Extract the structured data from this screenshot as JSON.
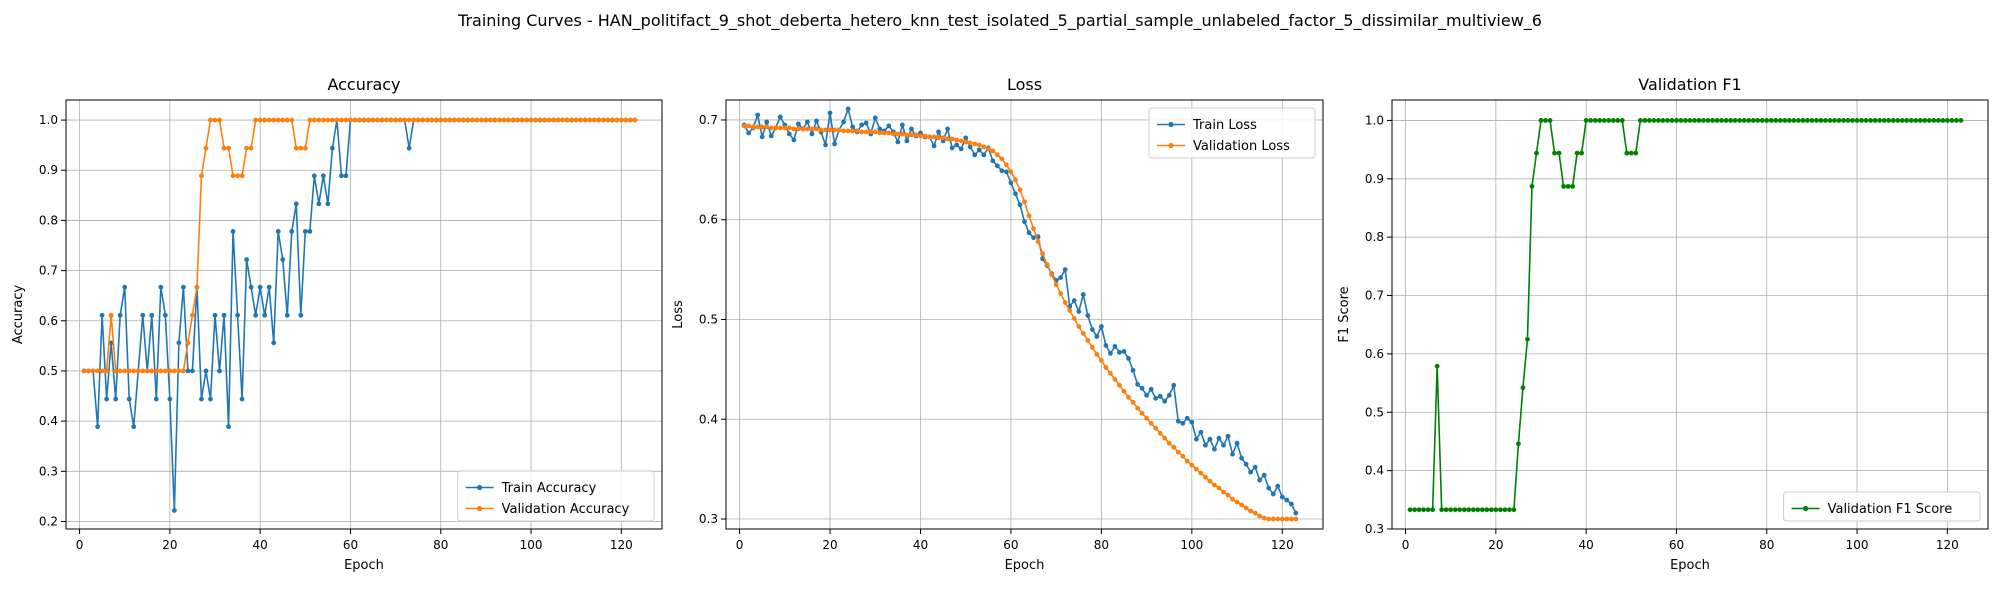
{
  "figure": {
    "suptitle": "Training Curves - HAN_politifact_9_shot_deberta_hetero_knn_test_isolated_5_partial_sample_unlabeled_factor_5_dissimilar_multiview_6"
  },
  "colors": {
    "blue": "#1f77b4",
    "orange": "#ff7f0e",
    "green": "#008000",
    "grid": "#b0b0b0"
  },
  "chart_data": [
    {
      "type": "line",
      "title": "Accuracy",
      "xlabel": "Epoch",
      "ylabel": "Accuracy",
      "xlim": [
        -3,
        129
      ],
      "ylim": [
        0.185,
        1.04
      ],
      "xticks": [
        0,
        20,
        40,
        60,
        80,
        100,
        120
      ],
      "yticks": [
        0.2,
        0.3,
        0.4,
        0.5,
        0.6,
        0.7,
        0.8,
        0.9,
        1.0
      ],
      "grid": true,
      "legend": "bottom-right",
      "series": [
        {
          "name": "Train Accuracy",
          "color": "#1f77b4",
          "x_start": 1,
          "values": [
            0.5,
            0.5,
            0.5,
            0.389,
            0.611,
            0.444,
            0.556,
            0.444,
            0.611,
            0.667,
            0.444,
            0.389,
            0.5,
            0.611,
            0.5,
            0.611,
            0.444,
            0.667,
            0.611,
            0.444,
            0.222,
            0.556,
            0.667,
            0.5,
            0.5,
            0.667,
            0.444,
            0.5,
            0.444,
            0.611,
            0.5,
            0.611,
            0.389,
            0.778,
            0.611,
            0.444,
            0.722,
            0.667,
            0.611,
            0.667,
            0.611,
            0.667,
            0.556,
            0.778,
            0.722,
            0.611,
            0.778,
            0.833,
            0.611,
            0.778,
            0.778,
            0.889,
            0.833,
            0.889,
            0.833,
            0.944,
            1.0,
            0.889,
            0.889,
            1.0,
            1.0,
            1.0,
            1.0,
            1.0,
            1.0,
            1.0,
            1.0,
            1.0,
            1.0,
            1.0,
            1.0,
            1.0,
            0.944,
            1.0,
            1.0,
            1.0,
            1.0,
            1.0,
            1.0,
            1.0,
            1.0,
            1.0,
            1.0,
            1.0,
            1.0,
            1.0,
            1.0,
            1.0,
            1.0,
            1.0,
            1.0,
            1.0,
            1.0,
            1.0,
            1.0,
            1.0,
            1.0,
            1.0,
            1.0,
            1.0,
            1.0,
            1.0,
            1.0,
            1.0,
            1.0,
            1.0,
            1.0,
            1.0,
            1.0,
            1.0,
            1.0,
            1.0,
            1.0,
            1.0,
            1.0,
            1.0,
            1.0,
            1.0,
            1.0,
            1.0,
            1.0,
            1.0,
            1.0
          ]
        },
        {
          "name": "Validation Accuracy",
          "color": "#ff7f0e",
          "x_start": 1,
          "values": [
            0.5,
            0.5,
            0.5,
            0.5,
            0.5,
            0.5,
            0.611,
            0.5,
            0.5,
            0.5,
            0.5,
            0.5,
            0.5,
            0.5,
            0.5,
            0.5,
            0.5,
            0.5,
            0.5,
            0.5,
            0.5,
            0.5,
            0.5,
            0.556,
            0.611,
            0.667,
            0.889,
            0.944,
            1.0,
            1.0,
            1.0,
            0.944,
            0.944,
            0.889,
            0.889,
            0.889,
            0.944,
            0.944,
            1.0,
            1.0,
            1.0,
            1.0,
            1.0,
            1.0,
            1.0,
            1.0,
            1.0,
            0.944,
            0.944,
            0.944,
            1.0,
            1.0,
            1.0,
            1.0,
            1.0,
            1.0,
            1.0,
            1.0,
            1.0,
            1.0,
            1.0,
            1.0,
            1.0,
            1.0,
            1.0,
            1.0,
            1.0,
            1.0,
            1.0,
            1.0,
            1.0,
            1.0,
            1.0,
            1.0,
            1.0,
            1.0,
            1.0,
            1.0,
            1.0,
            1.0,
            1.0,
            1.0,
            1.0,
            1.0,
            1.0,
            1.0,
            1.0,
            1.0,
            1.0,
            1.0,
            1.0,
            1.0,
            1.0,
            1.0,
            1.0,
            1.0,
            1.0,
            1.0,
            1.0,
            1.0,
            1.0,
            1.0,
            1.0,
            1.0,
            1.0,
            1.0,
            1.0,
            1.0,
            1.0,
            1.0,
            1.0,
            1.0,
            1.0,
            1.0,
            1.0,
            1.0,
            1.0,
            1.0,
            1.0,
            1.0,
            1.0,
            1.0,
            1.0
          ]
        }
      ]
    },
    {
      "type": "line",
      "title": "Loss",
      "xlabel": "Epoch",
      "ylabel": "Loss",
      "xlim": [
        -3,
        129
      ],
      "ylim": [
        0.29,
        0.72
      ],
      "xticks": [
        0,
        20,
        40,
        60,
        80,
        100,
        120
      ],
      "yticks": [
        0.3,
        0.4,
        0.5,
        0.6,
        0.7
      ],
      "grid": true,
      "legend": "top-right",
      "series": [
        {
          "name": "Train Loss",
          "color": "#1f77b4",
          "x_start": 1,
          "values": [
            0.695,
            0.687,
            0.692,
            0.705,
            0.683,
            0.698,
            0.684,
            0.692,
            0.703,
            0.695,
            0.686,
            0.68,
            0.696,
            0.691,
            0.698,
            0.686,
            0.699,
            0.688,
            0.675,
            0.707,
            0.676,
            0.69,
            0.698,
            0.711,
            0.693,
            0.688,
            0.695,
            0.697,
            0.686,
            0.702,
            0.691,
            0.689,
            0.694,
            0.688,
            0.678,
            0.695,
            0.679,
            0.691,
            0.684,
            0.687,
            0.683,
            0.683,
            0.674,
            0.688,
            0.679,
            0.691,
            0.672,
            0.675,
            0.671,
            0.682,
            0.673,
            0.665,
            0.67,
            0.665,
            0.672,
            0.659,
            0.654,
            0.649,
            0.648,
            0.637,
            0.626,
            0.615,
            0.598,
            0.587,
            0.582,
            0.583,
            0.561,
            0.554,
            0.546,
            0.539,
            0.542,
            0.55,
            0.513,
            0.519,
            0.508,
            0.525,
            0.504,
            0.49,
            0.483,
            0.493,
            0.474,
            0.466,
            0.473,
            0.467,
            0.468,
            0.461,
            0.449,
            0.435,
            0.431,
            0.424,
            0.43,
            0.421,
            0.423,
            0.418,
            0.424,
            0.434,
            0.398,
            0.396,
            0.401,
            0.397,
            0.38,
            0.387,
            0.374,
            0.38,
            0.37,
            0.381,
            0.374,
            0.383,
            0.365,
            0.376,
            0.361,
            0.355,
            0.347,
            0.352,
            0.339,
            0.344,
            0.331,
            0.325,
            0.333,
            0.322,
            0.319,
            0.315,
            0.306
          ]
        },
        {
          "name": "Validation Loss",
          "color": "#ff7f0e",
          "x_start": 1,
          "values": [
            0.694,
            0.694,
            0.693,
            0.693,
            0.693,
            0.693,
            0.692,
            0.692,
            0.692,
            0.692,
            0.692,
            0.691,
            0.691,
            0.691,
            0.691,
            0.691,
            0.691,
            0.69,
            0.69,
            0.69,
            0.69,
            0.69,
            0.689,
            0.689,
            0.689,
            0.689,
            0.688,
            0.688,
            0.688,
            0.688,
            0.687,
            0.687,
            0.687,
            0.686,
            0.686,
            0.686,
            0.685,
            0.685,
            0.685,
            0.684,
            0.684,
            0.683,
            0.683,
            0.682,
            0.682,
            0.681,
            0.681,
            0.68,
            0.679,
            0.678,
            0.677,
            0.676,
            0.675,
            0.673,
            0.671,
            0.669,
            0.665,
            0.661,
            0.655,
            0.648,
            0.64,
            0.63,
            0.618,
            0.604,
            0.591,
            0.578,
            0.566,
            0.555,
            0.545,
            0.535,
            0.526,
            0.517,
            0.509,
            0.501,
            0.493,
            0.486,
            0.479,
            0.472,
            0.465,
            0.459,
            0.452,
            0.446,
            0.44,
            0.434,
            0.428,
            0.422,
            0.417,
            0.411,
            0.406,
            0.401,
            0.396,
            0.391,
            0.386,
            0.381,
            0.376,
            0.372,
            0.367,
            0.363,
            0.358,
            0.354,
            0.35,
            0.346,
            0.342,
            0.338,
            0.334,
            0.331,
            0.327,
            0.324,
            0.32,
            0.317,
            0.314,
            0.311,
            0.308,
            0.306,
            0.303,
            0.301,
            0.3,
            0.3,
            0.3,
            0.3,
            0.3,
            0.3,
            0.3
          ]
        }
      ]
    },
    {
      "type": "line",
      "title": "Validation F1",
      "xlabel": "Epoch",
      "ylabel": "F1 Score",
      "xlim": [
        -3,
        129
      ],
      "ylim": [
        0.3,
        1.035
      ],
      "xticks": [
        0,
        20,
        40,
        60,
        80,
        100,
        120
      ],
      "yticks": [
        0.3,
        0.4,
        0.5,
        0.6,
        0.7,
        0.8,
        0.9,
        1.0
      ],
      "grid": true,
      "legend": "bottom-right",
      "series": [
        {
          "name": "Validation F1 Score",
          "color": "#008000",
          "x_start": 1,
          "values": [
            0.333,
            0.333,
            0.333,
            0.333,
            0.333,
            0.333,
            0.579,
            0.333,
            0.333,
            0.333,
            0.333,
            0.333,
            0.333,
            0.333,
            0.333,
            0.333,
            0.333,
            0.333,
            0.333,
            0.333,
            0.333,
            0.333,
            0.333,
            0.333,
            0.446,
            0.542,
            0.625,
            0.887,
            0.944,
            1.0,
            1.0,
            1.0,
            0.944,
            0.944,
            0.887,
            0.887,
            0.887,
            0.944,
            0.944,
            1.0,
            1.0,
            1.0,
            1.0,
            1.0,
            1.0,
            1.0,
            1.0,
            1.0,
            0.944,
            0.944,
            0.944,
            1.0,
            1.0,
            1.0,
            1.0,
            1.0,
            1.0,
            1.0,
            1.0,
            1.0,
            1.0,
            1.0,
            1.0,
            1.0,
            1.0,
            1.0,
            1.0,
            1.0,
            1.0,
            1.0,
            1.0,
            1.0,
            1.0,
            1.0,
            1.0,
            1.0,
            1.0,
            1.0,
            1.0,
            1.0,
            1.0,
            1.0,
            1.0,
            1.0,
            1.0,
            1.0,
            1.0,
            1.0,
            1.0,
            1.0,
            1.0,
            1.0,
            1.0,
            1.0,
            1.0,
            1.0,
            1.0,
            1.0,
            1.0,
            1.0,
            1.0,
            1.0,
            1.0,
            1.0,
            1.0,
            1.0,
            1.0,
            1.0,
            1.0,
            1.0,
            1.0,
            1.0,
            1.0,
            1.0,
            1.0,
            1.0,
            1.0,
            1.0,
            1.0,
            1.0,
            1.0,
            1.0,
            1.0
          ]
        }
      ]
    }
  ]
}
